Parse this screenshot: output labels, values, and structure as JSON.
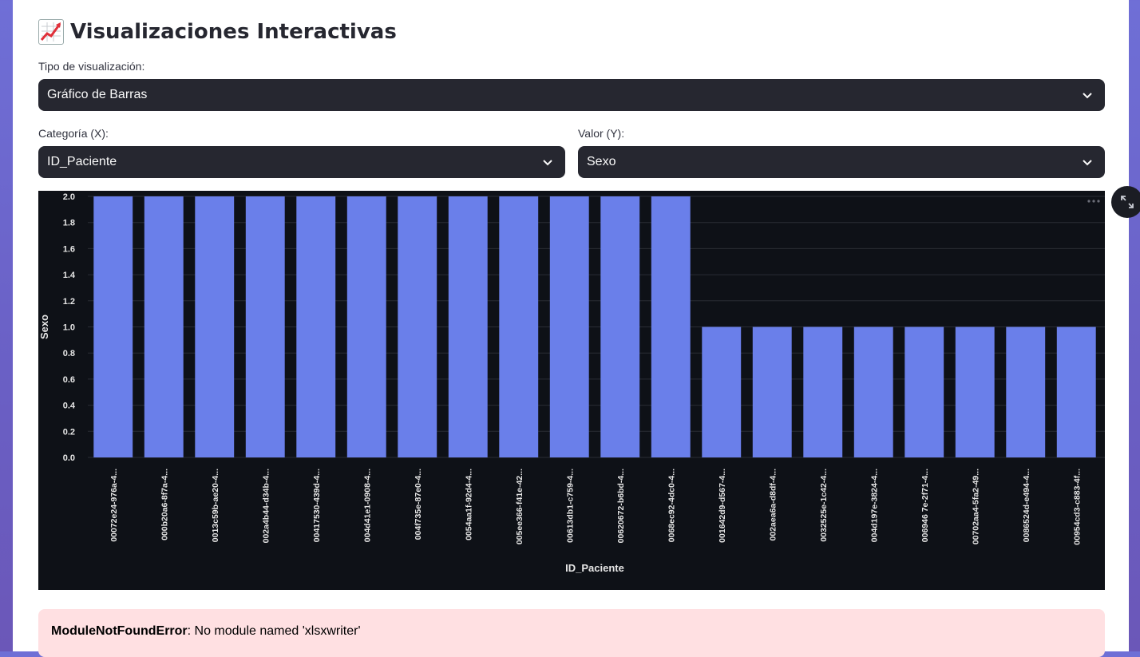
{
  "header": {
    "title": "Visualizaciones Interactivas",
    "icon": "chart-increasing-icon"
  },
  "viz_type": {
    "label": "Tipo de visualización:",
    "value": "Gráfico de Barras"
  },
  "x_select": {
    "label": "Categoría (X):",
    "value": "ID_Paciente"
  },
  "y_select": {
    "label": "Valor (Y):",
    "value": "Sexo"
  },
  "chart_data": {
    "type": "bar",
    "xlabel": "ID_Paciente",
    "ylabel": "Sexo",
    "ylim": [
      0,
      2
    ],
    "yticks": [
      "0.0",
      "0.2",
      "0.4",
      "0.6",
      "0.8",
      "1.0",
      "1.2",
      "1.4",
      "1.6",
      "1.8",
      "2.0"
    ],
    "categories": [
      "00072e24-976a-4...",
      "000b20a6-8f7a-4...",
      "0013c59b-ae20-4...",
      "002a4b44-d34b-4...",
      "00417530-439d-4...",
      "004d41e1-0908-4...",
      "004f735e-87e0-4...",
      "0054aa1f-92d4-4...",
      "005ee366-f41e-42...",
      "00613db1-c759-4...",
      "00620672-b6bd-4...",
      "0068ec92-4dc0-4...",
      "001642d9-d567-4...",
      "002aea6a-d8df-4...",
      "0032525e-1c42-4...",
      "004d197e-3824-4...",
      "006946 7e-2f71-4...",
      "00702aa4-5fa2-49...",
      "0086524d-e494-4...",
      "00954cd3-c883-4f..."
    ],
    "values": [
      2,
      2,
      2,
      2,
      2,
      2,
      2,
      2,
      2,
      2,
      2,
      2,
      1,
      1,
      1,
      1,
      1,
      1,
      1,
      1
    ],
    "bar_color": "#6a7fea",
    "grid": true
  },
  "error": {
    "name": "ModuleNotFoundError",
    "message": ": No module named 'xlsxwriter'"
  }
}
